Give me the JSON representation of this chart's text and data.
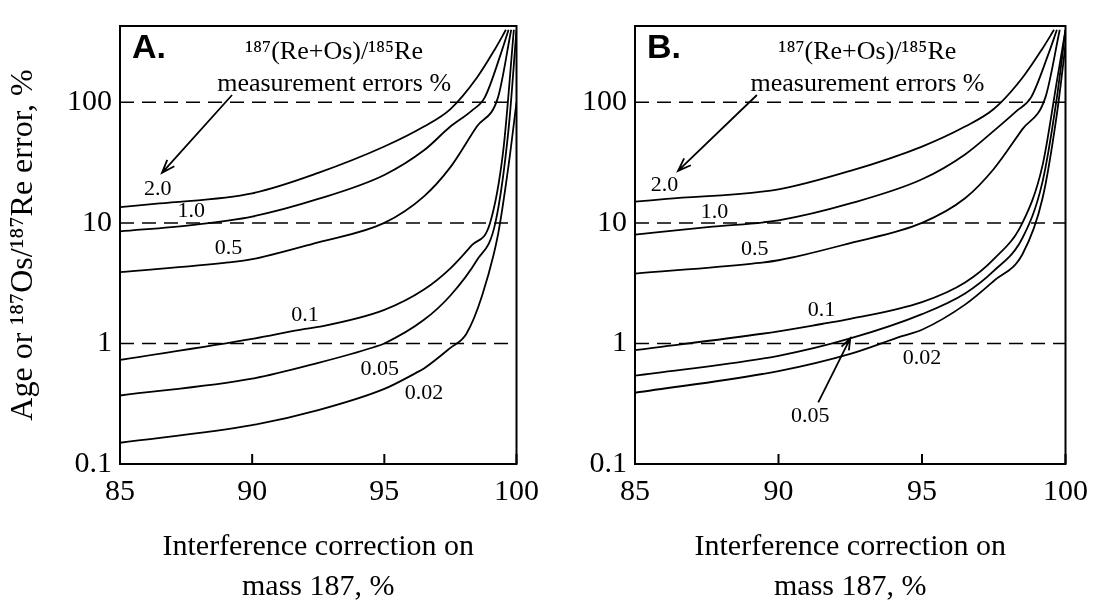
{
  "chart_data": [
    {
      "type": "line",
      "title": "A.",
      "xlabel": "Interference correction on mass 187, %",
      "ylabel": "Age or ¹⁸⁷Os/¹⁸⁷Re error, %",
      "xlim": [
        85,
        100
      ],
      "xticks": [
        85,
        90,
        95,
        100
      ],
      "ylim": [
        0.1,
        430
      ],
      "yticks": [
        0.1,
        1,
        10,
        100
      ],
      "log": "y",
      "grid": false,
      "marker": "none",
      "ref_lines": [
        {
          "axis": "y",
          "value": 1,
          "line_style": "dashed"
        },
        {
          "axis": "y",
          "value": 10,
          "line_style": "dashed"
        },
        {
          "axis": "y",
          "value": 100,
          "line_style": "dashed"
        }
      ],
      "annotations": [
        "¹⁸⁷(Re+Os)/¹⁸⁵Re",
        "measurement errors %",
        {
          "text": "2.0",
          "x": 86.5,
          "y": 14.5
        },
        {
          "text": "1.0",
          "x": 87.7,
          "y": 9.6
        },
        {
          "text": "0.5",
          "x": 89.1,
          "y": 4.7
        },
        {
          "text": "0.1",
          "x": 92,
          "y": 1.32
        },
        {
          "text": "0.05",
          "x": 94.6,
          "y": 0.93
        },
        {
          "text": "0.02",
          "x": 96.2,
          "y": 0.57
        }
      ],
      "series": [
        {
          "color": "#000000",
          "x": [
            85,
            86.5,
            90,
            92.5,
            95,
            96.5,
            97.5,
            98.5,
            99.2,
            99.6
          ],
          "values": [
            13.5,
            14.5,
            17.6,
            26,
            43,
            63,
            88,
            160,
            280,
            400
          ]
        },
        {
          "color": "#000000",
          "x": [
            85,
            87.7,
            90,
            92.5,
            95,
            96.5,
            97.5,
            98.3,
            98.8,
            99.4,
            99.7
          ],
          "values": [
            8.5,
            9.6,
            11.3,
            15.8,
            25,
            40,
            63,
            85,
            110,
            250,
            400
          ]
        },
        {
          "color": "#000000",
          "x": [
            85,
            89.1,
            90,
            92.5,
            95,
            96.5,
            97.5,
            98.5,
            99.3,
            99.8
          ],
          "values": [
            3.9,
            4.7,
            5,
            6.9,
            10,
            16.6,
            29,
            63,
            110,
            400
          ]
        },
        {
          "color": "#000000",
          "x": [
            85,
            90,
            92,
            92.5,
            95,
            96.5,
            97.5,
            98.3,
            99,
            99.5,
            99.9
          ],
          "values": [
            0.73,
            1.09,
            1.32,
            1.37,
            1.9,
            2.8,
            4.2,
            6.5,
            10,
            40,
            400
          ]
        },
        {
          "color": "#000000",
          "x": [
            85,
            90,
            92.5,
            94.6,
            95,
            96.5,
            97.5,
            98.5,
            99.2,
            99.7,
            100
          ],
          "values": [
            0.37,
            0.51,
            0.69,
            0.93,
            1,
            1.57,
            2.5,
            4.9,
            10,
            60,
            400
          ]
        },
        {
          "color": "#000000",
          "x": [
            85,
            90,
            92.5,
            95,
            96.2,
            96.5,
            97.5,
            98.1,
            98.7,
            99.3,
            99.7,
            100
          ],
          "values": [
            0.15,
            0.21,
            0.28,
            0.42,
            0.57,
            0.62,
            0.92,
            1.2,
            2.5,
            8,
            30,
            100
          ]
        }
      ]
    },
    {
      "type": "line",
      "title": "B.",
      "xlabel": "Interference correction on mass 187, %",
      "xlim": [
        85,
        100
      ],
      "xticks": [
        85,
        90,
        95,
        100
      ],
      "ylim": [
        0.1,
        430
      ],
      "yticks": [
        0.1,
        1,
        10,
        100
      ],
      "log": "y",
      "grid": false,
      "marker": "none",
      "ref_lines": [
        {
          "axis": "y",
          "value": 1,
          "line_style": "dashed"
        },
        {
          "axis": "y",
          "value": 10,
          "line_style": "dashed"
        },
        {
          "axis": "y",
          "value": 100,
          "line_style": "dashed"
        }
      ],
      "annotations": [
        "¹⁸⁷(Re+Os)/¹⁸⁵Re",
        "measurement errors %",
        {
          "text": "2.0",
          "x": 86.1,
          "y": 15.8
        },
        {
          "text": "1.0",
          "x": 87.7,
          "y": 9.3
        },
        {
          "text": "0.5",
          "x": 89.1,
          "y": 4.6
        },
        {
          "text": "0.1",
          "x": 91.5,
          "y": 1.45
        },
        {
          "text": "0.02",
          "x": 94.3,
          "y": 1.15
        },
        {
          "text": "0.05",
          "x": 92.5,
          "y": 1.1
        }
      ],
      "series": [
        {
          "color": "#000000",
          "x": [
            85,
            86.1,
            90,
            92.5,
            95,
            96.5,
            97.5,
            98.5,
            99.2,
            99.6
          ],
          "values": [
            15,
            15.8,
            19,
            27,
            43,
            63,
            88,
            160,
            280,
            400
          ]
        },
        {
          "color": "#000000",
          "x": [
            85,
            87.7,
            90,
            92.5,
            95,
            96.5,
            97.5,
            98.3,
            98.8,
            99.4,
            99.7
          ],
          "values": [
            8,
            9.3,
            10.5,
            14.5,
            23,
            37,
            58,
            85,
            110,
            250,
            400
          ]
        },
        {
          "color": "#000000",
          "x": [
            85,
            89.1,
            90,
            92.5,
            95,
            96.5,
            97.5,
            98.5,
            99.3,
            99.8
          ],
          "values": [
            3.8,
            4.6,
            4.9,
            6.8,
            10,
            16,
            28,
            60,
            110,
            400
          ]
        },
        {
          "color": "#000000",
          "x": [
            85,
            90,
            91.5,
            92.5,
            95,
            96.5,
            97.5,
            98.5,
            99.2,
            99.7,
            100
          ],
          "values": [
            0.88,
            1.26,
            1.45,
            1.6,
            2.2,
            3.2,
            5,
            10,
            30,
            150,
            400
          ]
        },
        {
          "color": "#000000",
          "x": [
            85,
            90,
            92.5,
            95,
            96.5,
            97.5,
            98.5,
            99.2,
            99.7,
            100
          ],
          "values": [
            0.54,
            0.79,
            1.1,
            1.75,
            2.6,
            4,
            7.5,
            22,
            110,
            400
          ]
        },
        {
          "color": "#000000",
          "x": [
            85,
            90,
            92.5,
            94.3,
            95,
            96.5,
            97.5,
            98.5,
            99.2,
            99.7,
            100
          ],
          "values": [
            0.39,
            0.59,
            0.82,
            1.15,
            1.3,
            2.1,
            3.3,
            5.5,
            16,
            80,
            300
          ]
        }
      ]
    }
  ]
}
